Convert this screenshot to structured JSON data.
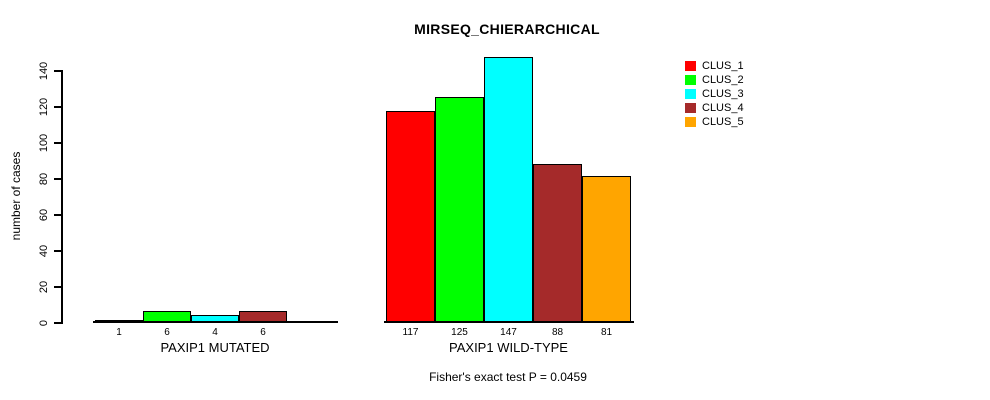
{
  "title": "MIRSEQ_CHIERARCHICAL",
  "subtitle": "Fisher's exact test P = 0.0459",
  "y_axis": {
    "label": "number of cases",
    "ticks": [
      0,
      20,
      40,
      60,
      80,
      100,
      120,
      140
    ]
  },
  "legend": {
    "position": "top-right",
    "entries": [
      {
        "label": "CLUS_1",
        "color": "#FF0000"
      },
      {
        "label": "CLUS_2",
        "color": "#00FF00"
      },
      {
        "label": "CLUS_3",
        "color": "#00FFFF"
      },
      {
        "label": "CLUS_4",
        "color": "#A52A2A"
      },
      {
        "label": "CLUS_5",
        "color": "#FFA500"
      }
    ]
  },
  "chart_data": {
    "type": "bar",
    "title": "MIRSEQ_CHIERARCHICAL",
    "ylabel": "number of cases",
    "xlabel": "",
    "ylim": [
      0,
      140
    ],
    "yticks": [
      0,
      20,
      40,
      60,
      80,
      100,
      120,
      140
    ],
    "grid": false,
    "legend_position": "top-right",
    "categories": [
      "CLUS_1",
      "CLUS_2",
      "CLUS_3",
      "CLUS_4",
      "CLUS_5"
    ],
    "colors": [
      "#FF0000",
      "#00FF00",
      "#00FFFF",
      "#A52A2A",
      "#FFA500"
    ],
    "groups": [
      {
        "label": "PAXIP1 MUTATED",
        "values": [
          1,
          6,
          4,
          6,
          0
        ],
        "value_labels": [
          "1",
          "6",
          "4",
          "6",
          ""
        ]
      },
      {
        "label": "PAXIP1 WILD-TYPE",
        "values": [
          117,
          125,
          147,
          88,
          81
        ],
        "value_labels": [
          "117",
          "125",
          "147",
          "88",
          "81"
        ]
      }
    ],
    "annotation": "Fisher's exact test P = 0.0459"
  }
}
